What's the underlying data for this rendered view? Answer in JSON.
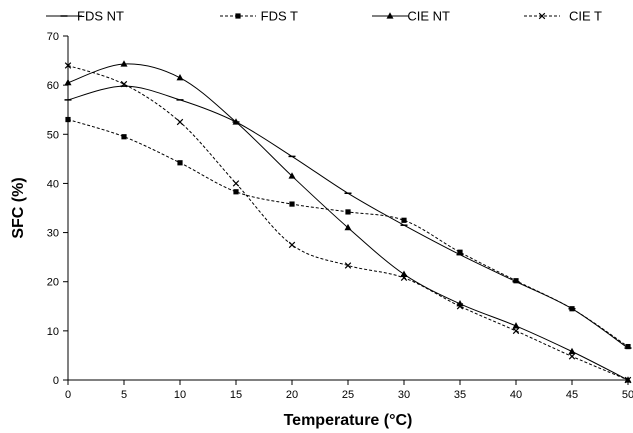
{
  "chart_data": {
    "type": "line",
    "xlabel": "Temperature (°C)",
    "ylabel": "SFC (%)",
    "x": [
      0,
      5,
      10,
      15,
      20,
      25,
      30,
      35,
      40,
      45,
      50
    ],
    "xlim": [
      0,
      50
    ],
    "ylim": [
      0,
      70
    ],
    "xticks": [
      0,
      5,
      10,
      15,
      20,
      25,
      30,
      35,
      40,
      45,
      50
    ],
    "yticks": [
      0,
      10,
      20,
      30,
      40,
      50,
      60,
      70
    ],
    "grid": false,
    "legend_position": "top",
    "series": [
      {
        "name": "FDS NT",
        "line": "solid",
        "marker": "dash",
        "values": [
          57,
          59.8,
          57,
          52.5,
          45.5,
          38,
          31.5,
          25.5,
          20,
          14.5,
          6.5
        ]
      },
      {
        "name": "FDS T",
        "line": "dotted",
        "marker": "square",
        "values": [
          53,
          49.5,
          44.2,
          38.3,
          35.8,
          34.2,
          32.5,
          26,
          20.2,
          14.5,
          6.8
        ]
      },
      {
        "name": "CIE NT",
        "line": "solid",
        "marker": "triangle",
        "values": [
          60.5,
          64.3,
          61.5,
          52.5,
          41.5,
          31,
          21.5,
          15.5,
          11,
          5.8,
          0
        ]
      },
      {
        "name": "CIE T",
        "line": "dotted",
        "marker": "x",
        "values": [
          64,
          60.2,
          52.5,
          40,
          27.5,
          23.3,
          20.8,
          15,
          10,
          4.8,
          0
        ]
      }
    ]
  }
}
